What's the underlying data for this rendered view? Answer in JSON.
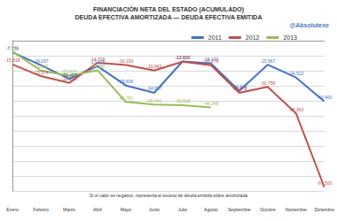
{
  "chart_data": {
    "type": "line",
    "title": "FINANCIACIÓN NETA DEL ESTADO (ACUMULADO)",
    "subtitle": "DEUDA EFECTIVA AMORTIZADA — DEUDA EFECTIVA EMITIDA",
    "annotations": [
      "Si el valor es negativo, representa el exceso de deuda emitida sobre amortizada",
      "@Absolutexe"
    ],
    "categories": [
      "Enero",
      "Febrero",
      "Marzo",
      "Abril",
      "Mayo",
      "Junio",
      "Julio",
      "Agosto",
      "Septiembre",
      "Octubre",
      "Noviembre",
      "Diciembre"
    ],
    "series": [
      {
        "name": "2011",
        "color": "#4472c4",
        "values": [
          -7756,
          -16297,
          -25421,
          -17028,
          -29806,
          -34687,
          -13832,
          -15173,
          -33343,
          -15967,
          -24522,
          -40400
        ],
        "value_labels": [
          "-7.756",
          "-16.297",
          "-25.421",
          "-17.028",
          "-29.806",
          "-34.687",
          "-13.832",
          "-15.173",
          "-33.343",
          "-15.967",
          "-24.522",
          "-40.400"
        ]
      },
      {
        "name": "2012",
        "color": "#c0504d",
        "values": [
          -15818,
          -23574,
          -28131,
          -14728,
          -16193,
          -19843,
          -13925,
          -16276,
          -34678,
          -30758,
          -48363,
          -97500
        ],
        "value_labels": [
          "-15.818",
          "-23.574",
          "-28.131",
          "-14.728",
          "-16.193",
          "-19.843",
          "-13.925",
          "-16.276",
          "-34.678",
          "-30.758",
          "-48.363",
          "-97.500"
        ]
      },
      {
        "name": "2013",
        "color": "#9bbb59",
        "values": [
          -7146,
          -19867,
          -23415,
          -19658,
          -40781,
          -42441,
          -42918,
          -44348,
          null,
          null,
          null,
          null
        ],
        "value_labels": [
          "-7.146",
          "-19.867",
          "-23.415",
          "-19.658",
          "-40.781",
          "-42.441",
          "-42.918",
          "-44.348",
          null,
          null,
          null,
          null
        ]
      }
    ],
    "ylim": [
      -100000,
      0
    ],
    "yticks": [
      -100000,
      -90000,
      -80000,
      -70000,
      -60000,
      -50000,
      -40000,
      -30000,
      -20000,
      -10000,
      0
    ],
    "grid": true,
    "legend": "top-right",
    "data_labels": true,
    "tick_labels": "x"
  }
}
